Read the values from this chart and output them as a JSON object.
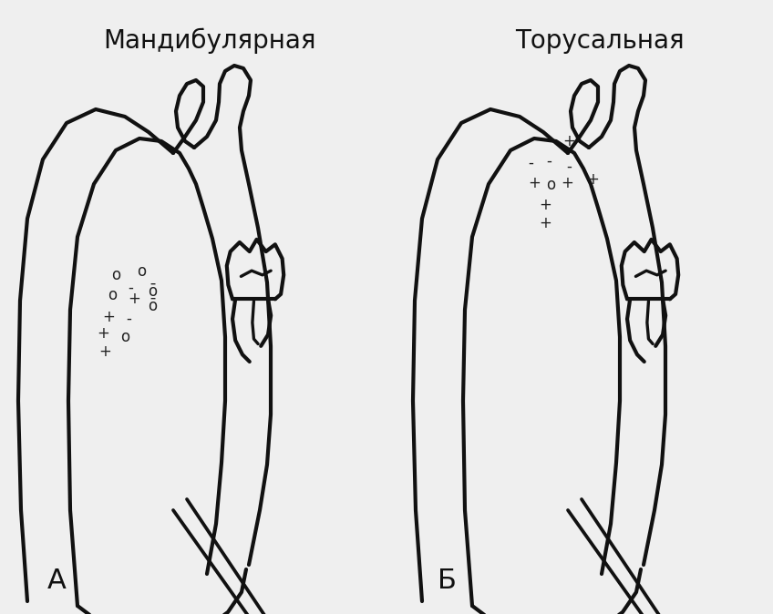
{
  "bg_color": "#efefef",
  "line_color": "#111111",
  "line_width": 3.0,
  "title_left": "Мандибулярная",
  "title_right": "Торусальная",
  "label_left": "А",
  "label_right": "Б",
  "font_size_title": 20,
  "font_size_label": 22,
  "marker_fontsize": 12,
  "left_markers": [
    [
      0,
      0,
      "o"
    ],
    [
      28,
      -4,
      "o"
    ],
    [
      16,
      14,
      "-"
    ],
    [
      40,
      18,
      "ō"
    ],
    [
      -4,
      22,
      "o"
    ],
    [
      20,
      26,
      "+"
    ],
    [
      40,
      34,
      "ō"
    ],
    [
      -8,
      46,
      "+"
    ],
    [
      14,
      48,
      "-"
    ],
    [
      -14,
      64,
      "+"
    ],
    [
      10,
      68,
      "o"
    ],
    [
      -12,
      84,
      "+"
    ]
  ],
  "right_markers": [
    [
      28,
      -50,
      "+"
    ],
    [
      -14,
      -26,
      "-"
    ],
    [
      6,
      -28,
      "-"
    ],
    [
      28,
      -22,
      "-"
    ],
    [
      -10,
      -4,
      "+"
    ],
    [
      8,
      -2,
      "o"
    ],
    [
      26,
      -4,
      "+"
    ],
    [
      54,
      -8,
      "+"
    ],
    [
      2,
      20,
      "+"
    ],
    [
      2,
      40,
      "+"
    ]
  ]
}
